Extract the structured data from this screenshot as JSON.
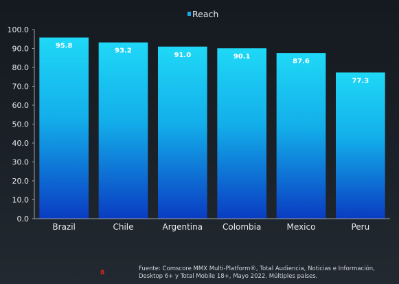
{
  "chart_data": {
    "type": "bar",
    "categories": [
      "Brazil",
      "Chile",
      "Argentina",
      "Colombia",
      "Mexico",
      "Peru"
    ],
    "series": [
      {
        "name": "Reach",
        "values": [
          95.8,
          93.2,
          91.0,
          90.1,
          87.6,
          77.3
        ]
      }
    ],
    "value_labels": [
      "95.8",
      "93.2",
      "91.0",
      "90.1",
      "87.6",
      "77.3"
    ],
    "ylim": [
      0,
      100
    ],
    "y_ticks": [
      "0.0",
      "10.0",
      "20.0",
      "30.0",
      "40.0",
      "50.0",
      "60.0",
      "70.0",
      "80.0",
      "90.0",
      "100.0"
    ],
    "grid": false,
    "legend_position": "top-center",
    "colors": {
      "bar_top": "#1fd8f6",
      "bar_bottom": "#0a3cc2",
      "legend_marker": "#1ea6e6",
      "text": "#e6eaee",
      "axis": "#9aa3ab"
    }
  },
  "footer": {
    "page_number": "8",
    "source": "Fuente: Comscore MMX Multi-Platform®, Total Audiencia, Noticias e Información, Desktop 6+ y Total Mobile 18+, Mayo 2022. Múltiples países."
  }
}
